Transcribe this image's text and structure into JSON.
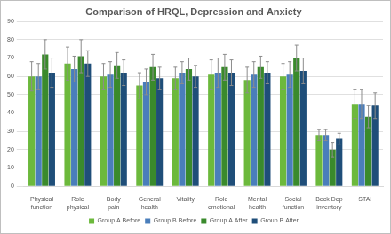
{
  "chart_data": {
    "type": "bar",
    "title": "Comparison of HRQL, Depression and Anxiety",
    "categories": [
      "Physical function",
      "Role physical",
      "Body pain",
      "General health",
      "Vitality",
      "Role emotional",
      "Mental health",
      "Social function",
      "Beck Dep inventory",
      "STAI"
    ],
    "series": [
      {
        "name": "Group A Before",
        "color": "#6cb93c",
        "values": [
          60,
          67,
          60,
          55,
          59,
          61,
          58,
          60,
          28,
          45
        ],
        "errors": [
          8,
          9,
          7,
          7,
          6,
          8,
          7,
          7,
          3,
          8
        ]
      },
      {
        "name": "Group B Before",
        "color": "#4a7ebb",
        "values": [
          60,
          64,
          61,
          57,
          62,
          62,
          61,
          61,
          28,
          45
        ],
        "errors": [
          7,
          7,
          7,
          7,
          6,
          8,
          7,
          7,
          3,
          8
        ]
      },
      {
        "name": "Group A After",
        "color": "#3a8a2c",
        "values": [
          72,
          71,
          66,
          65,
          64,
          65,
          65,
          70,
          20,
          38
        ],
        "errors": [
          8,
          9,
          7,
          7,
          6,
          7,
          6,
          7,
          4,
          6
        ]
      },
      {
        "name": "Group B After",
        "color": "#1f4e79",
        "values": [
          62,
          67,
          62,
          59,
          60,
          62,
          62,
          63,
          26,
          44
        ],
        "errors": [
          8,
          7,
          7,
          6,
          6,
          7,
          6,
          7,
          3,
          7
        ]
      }
    ],
    "ylim": [
      0,
      90
    ],
    "yticks": [
      0,
      10,
      20,
      30,
      40,
      50,
      60,
      70,
      80,
      90
    ],
    "grid": true,
    "legend": "bottom"
  }
}
